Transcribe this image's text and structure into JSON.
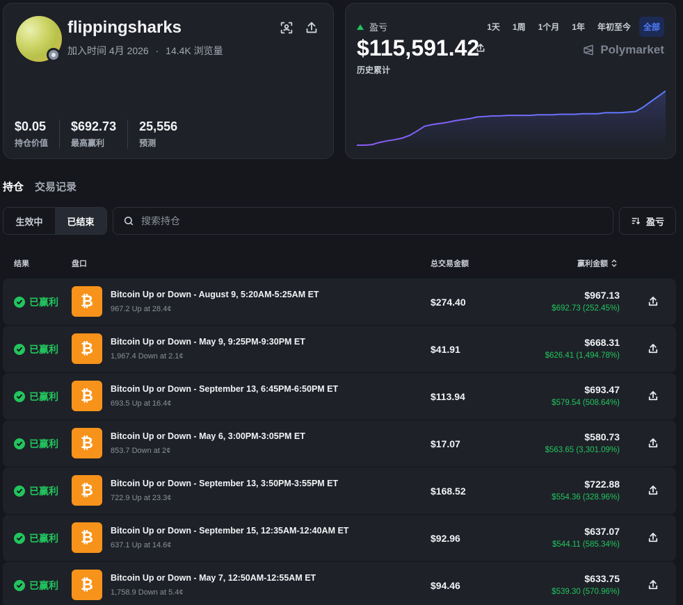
{
  "profile": {
    "username": "flippingsharks",
    "joined": "加入时间 4月 2026",
    "separator": "·",
    "views": "14.4K 浏览量",
    "stats": [
      {
        "value": "$0.05",
        "label": "持仓价值"
      },
      {
        "value": "$692.73",
        "label": "最高赢利"
      },
      {
        "value": "25,556",
        "label": "预测"
      }
    ]
  },
  "pnl": {
    "label": "盈亏",
    "value": "$115,591.42",
    "sublabel": "历史累计",
    "ranges": [
      "1天",
      "1周",
      "1个月",
      "1年",
      "年初至今",
      "全部"
    ],
    "active_range": "全部",
    "brand": "Polymarket",
    "series": [
      0.0,
      0.0,
      0.01,
      0.05,
      0.08,
      0.1,
      0.13,
      0.18,
      0.26,
      0.35,
      0.38,
      0.4,
      0.42,
      0.45,
      0.47,
      0.49,
      0.52,
      0.53,
      0.54,
      0.54,
      0.55,
      0.55,
      0.55,
      0.55,
      0.56,
      0.56,
      0.56,
      0.57,
      0.57,
      0.57,
      0.58,
      0.58,
      0.58,
      0.6,
      0.6,
      0.6,
      0.61,
      0.62,
      0.7,
      0.8,
      0.9,
      1.0
    ]
  },
  "tabs": [
    "持仓",
    "交易记录"
  ],
  "filters": {
    "active_label": "生效中",
    "closed_label": "已结束",
    "search_placeholder": "搜索持仓",
    "sort_label": "盈亏"
  },
  "table": {
    "headers": {
      "result": "结果",
      "market": "盘口",
      "traded": "总交易金额",
      "won": "赢利金额"
    },
    "rows": [
      {
        "status": "已赢利",
        "title": "Bitcoin Up or Down - August 9, 5:20AM-5:25AM ET",
        "sub": "967.2 Up at 28.4¢",
        "traded": "$274.40",
        "won": "$967.13",
        "profit": "$692.73 (252.45%)"
      },
      {
        "status": "已赢利",
        "title": "Bitcoin Up or Down - May 9, 9:25PM-9:30PM ET",
        "sub": "1,967.4 Down at 2.1¢",
        "traded": "$41.91",
        "won": "$668.31",
        "profit": "$626.41 (1,494.78%)"
      },
      {
        "status": "已赢利",
        "title": "Bitcoin Up or Down - September 13, 6:45PM-6:50PM ET",
        "sub": "693.5 Up at 16.4¢",
        "traded": "$113.94",
        "won": "$693.47",
        "profit": "$579.54 (508.64%)"
      },
      {
        "status": "已赢利",
        "title": "Bitcoin Up or Down - May 6, 3:00PM-3:05PM ET",
        "sub": "853.7 Down at 2¢",
        "traded": "$17.07",
        "won": "$580.73",
        "profit": "$563.65 (3,301.09%)"
      },
      {
        "status": "已赢利",
        "title": "Bitcoin Up or Down - September 13, 3:50PM-3:55PM ET",
        "sub": "722.9 Up at 23.3¢",
        "traded": "$168.52",
        "won": "$722.88",
        "profit": "$554.36 (328.96%)"
      },
      {
        "status": "已赢利",
        "title": "Bitcoin Up or Down - September 15, 12:35AM-12:40AM ET",
        "sub": "637.1 Up at 14.6¢",
        "traded": "$92.96",
        "won": "$637.07",
        "profit": "$544.11 (585.34%)"
      },
      {
        "status": "已赢利",
        "title": "Bitcoin Up or Down - May 7, 12:50AM-12:55AM ET",
        "sub": "1,758.9 Down at 5.4¢",
        "traded": "$94.46",
        "won": "$633.75",
        "profit": "$539.30 (570.96%)"
      }
    ]
  },
  "colors": {
    "accent": "#4f7cff",
    "profit": "#22c55e",
    "bitcoin": "#f7931a",
    "line_start": "#8b5cf6",
    "line_end": "#5b7cff"
  }
}
